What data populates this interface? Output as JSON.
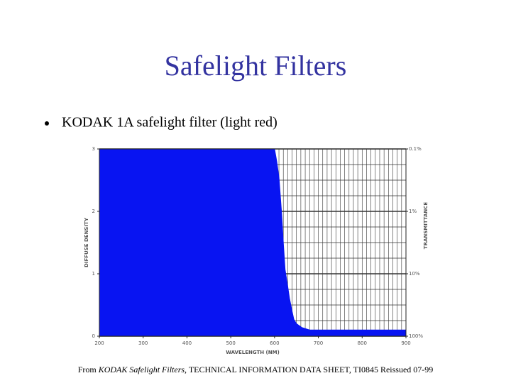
{
  "chart_data": {
    "type": "area",
    "title": "Safelight Filters",
    "subtitle": "KODAK 1A safelight filter (light red)",
    "xlabel": "WAVELENGTH (NM)",
    "ylabel": "DIFFUSE DENSITY",
    "y2label": "TRANSMITTANCE",
    "footnote": [
      "From ",
      "KODAK Safelight Filters",
      ", TECHNICAL INFORMATION DATA SHEET, TI0845 Reissued 07-99"
    ],
    "x": [
      200,
      600,
      605,
      610,
      616,
      620,
      624,
      630,
      634,
      640,
      644,
      650,
      662,
      680,
      700,
      800,
      900
    ],
    "values": [
      3,
      3,
      2.8,
      2.55,
      1.98,
      1.5,
      1.07,
      0.8,
      0.61,
      0.4,
      0.27,
      0.2,
      0.14,
      0.1,
      0.1,
      0.1,
      0.1
    ],
    "color": "#0814f2",
    "xlim": [
      200,
      900
    ],
    "xticks": [
      200,
      300,
      400,
      500,
      600,
      700,
      800,
      900
    ],
    "ylim": [
      0,
      3
    ],
    "yticks": [
      0,
      1,
      2,
      3
    ],
    "y2lim": [
      100,
      0.1
    ],
    "y2log": true,
    "y2ticks": [
      {
        "value": 100,
        "label": "100%"
      },
      {
        "value": 10,
        "label": "10%"
      },
      {
        "value": 1,
        "label": "1%"
      },
      {
        "value": 0.1,
        "label": "0.1%"
      }
    ],
    "xgrid": [
      200,
      210,
      220,
      230,
      240,
      250,
      260,
      270,
      280,
      290,
      300,
      310,
      320,
      330,
      340,
      350,
      360,
      370,
      380,
      390,
      400,
      410,
      420,
      430,
      440,
      450,
      460,
      470,
      480,
      490,
      500,
      510,
      520,
      530,
      540,
      550,
      560,
      570,
      580,
      590,
      600,
      610,
      620,
      630,
      640,
      650,
      660,
      670,
      680,
      690,
      700,
      710,
      720,
      730,
      740,
      750,
      760,
      770,
      780,
      790,
      800,
      810,
      820,
      830,
      840,
      850,
      860,
      870,
      880,
      890,
      900
    ],
    "ygrid": [
      0,
      0.25,
      0.5,
      0.75,
      1,
      1.25,
      1.5,
      1.75,
      2,
      2.25,
      2.5,
      2.75,
      3
    ],
    "grid": true
  }
}
